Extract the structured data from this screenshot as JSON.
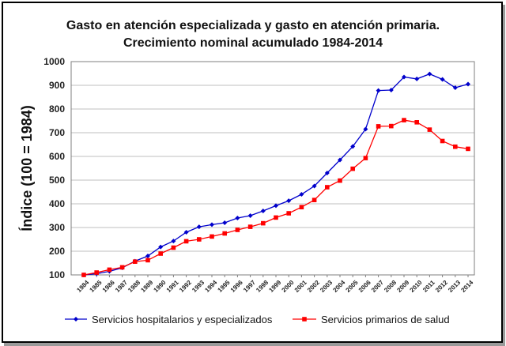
{
  "chart_data": {
    "type": "line",
    "title_line1": "Gasto en atención especializada y gasto en atención primaria.",
    "title_line2": "Crecimiento nominal acumulado 1984-2014",
    "xlabel": "",
    "ylabel": "Índice (100 = 1984)",
    "ylim": [
      100,
      1000
    ],
    "yticks": [
      100,
      200,
      300,
      400,
      500,
      600,
      700,
      800,
      900,
      1000
    ],
    "grid": true,
    "legend_position": "bottom",
    "categories": [
      "1984",
      "1985",
      "1986",
      "1987",
      "1988",
      "1989",
      "1990",
      "1991",
      "1992",
      "1993",
      "1994",
      "1995",
      "1996",
      "1997",
      "1998",
      "1999",
      "2000",
      "2001",
      "2002",
      "2003",
      "2004",
      "2005",
      "2006",
      "2007",
      "2008",
      "2009",
      "2010",
      "2011",
      "2012",
      "2013",
      "2014"
    ],
    "series": [
      {
        "name": "Servicios hospitalarios y especializados",
        "color": "#0000cc",
        "marker": "diamond",
        "values": [
          100,
          105,
          115,
          130,
          158,
          180,
          218,
          243,
          280,
          303,
          312,
          320,
          340,
          350,
          370,
          392,
          413,
          440,
          475,
          530,
          585,
          642,
          715,
          878,
          880,
          935,
          927,
          948,
          925,
          890,
          905
        ]
      },
      {
        "name": "Servicios primarios de salud",
        "color": "#ff0000",
        "marker": "square",
        "values": [
          100,
          110,
          122,
          132,
          156,
          162,
          190,
          215,
          242,
          250,
          262,
          275,
          290,
          303,
          318,
          342,
          360,
          386,
          416,
          470,
          498,
          548,
          593,
          727,
          728,
          753,
          744,
          713,
          665,
          641,
          632
        ]
      }
    ]
  }
}
